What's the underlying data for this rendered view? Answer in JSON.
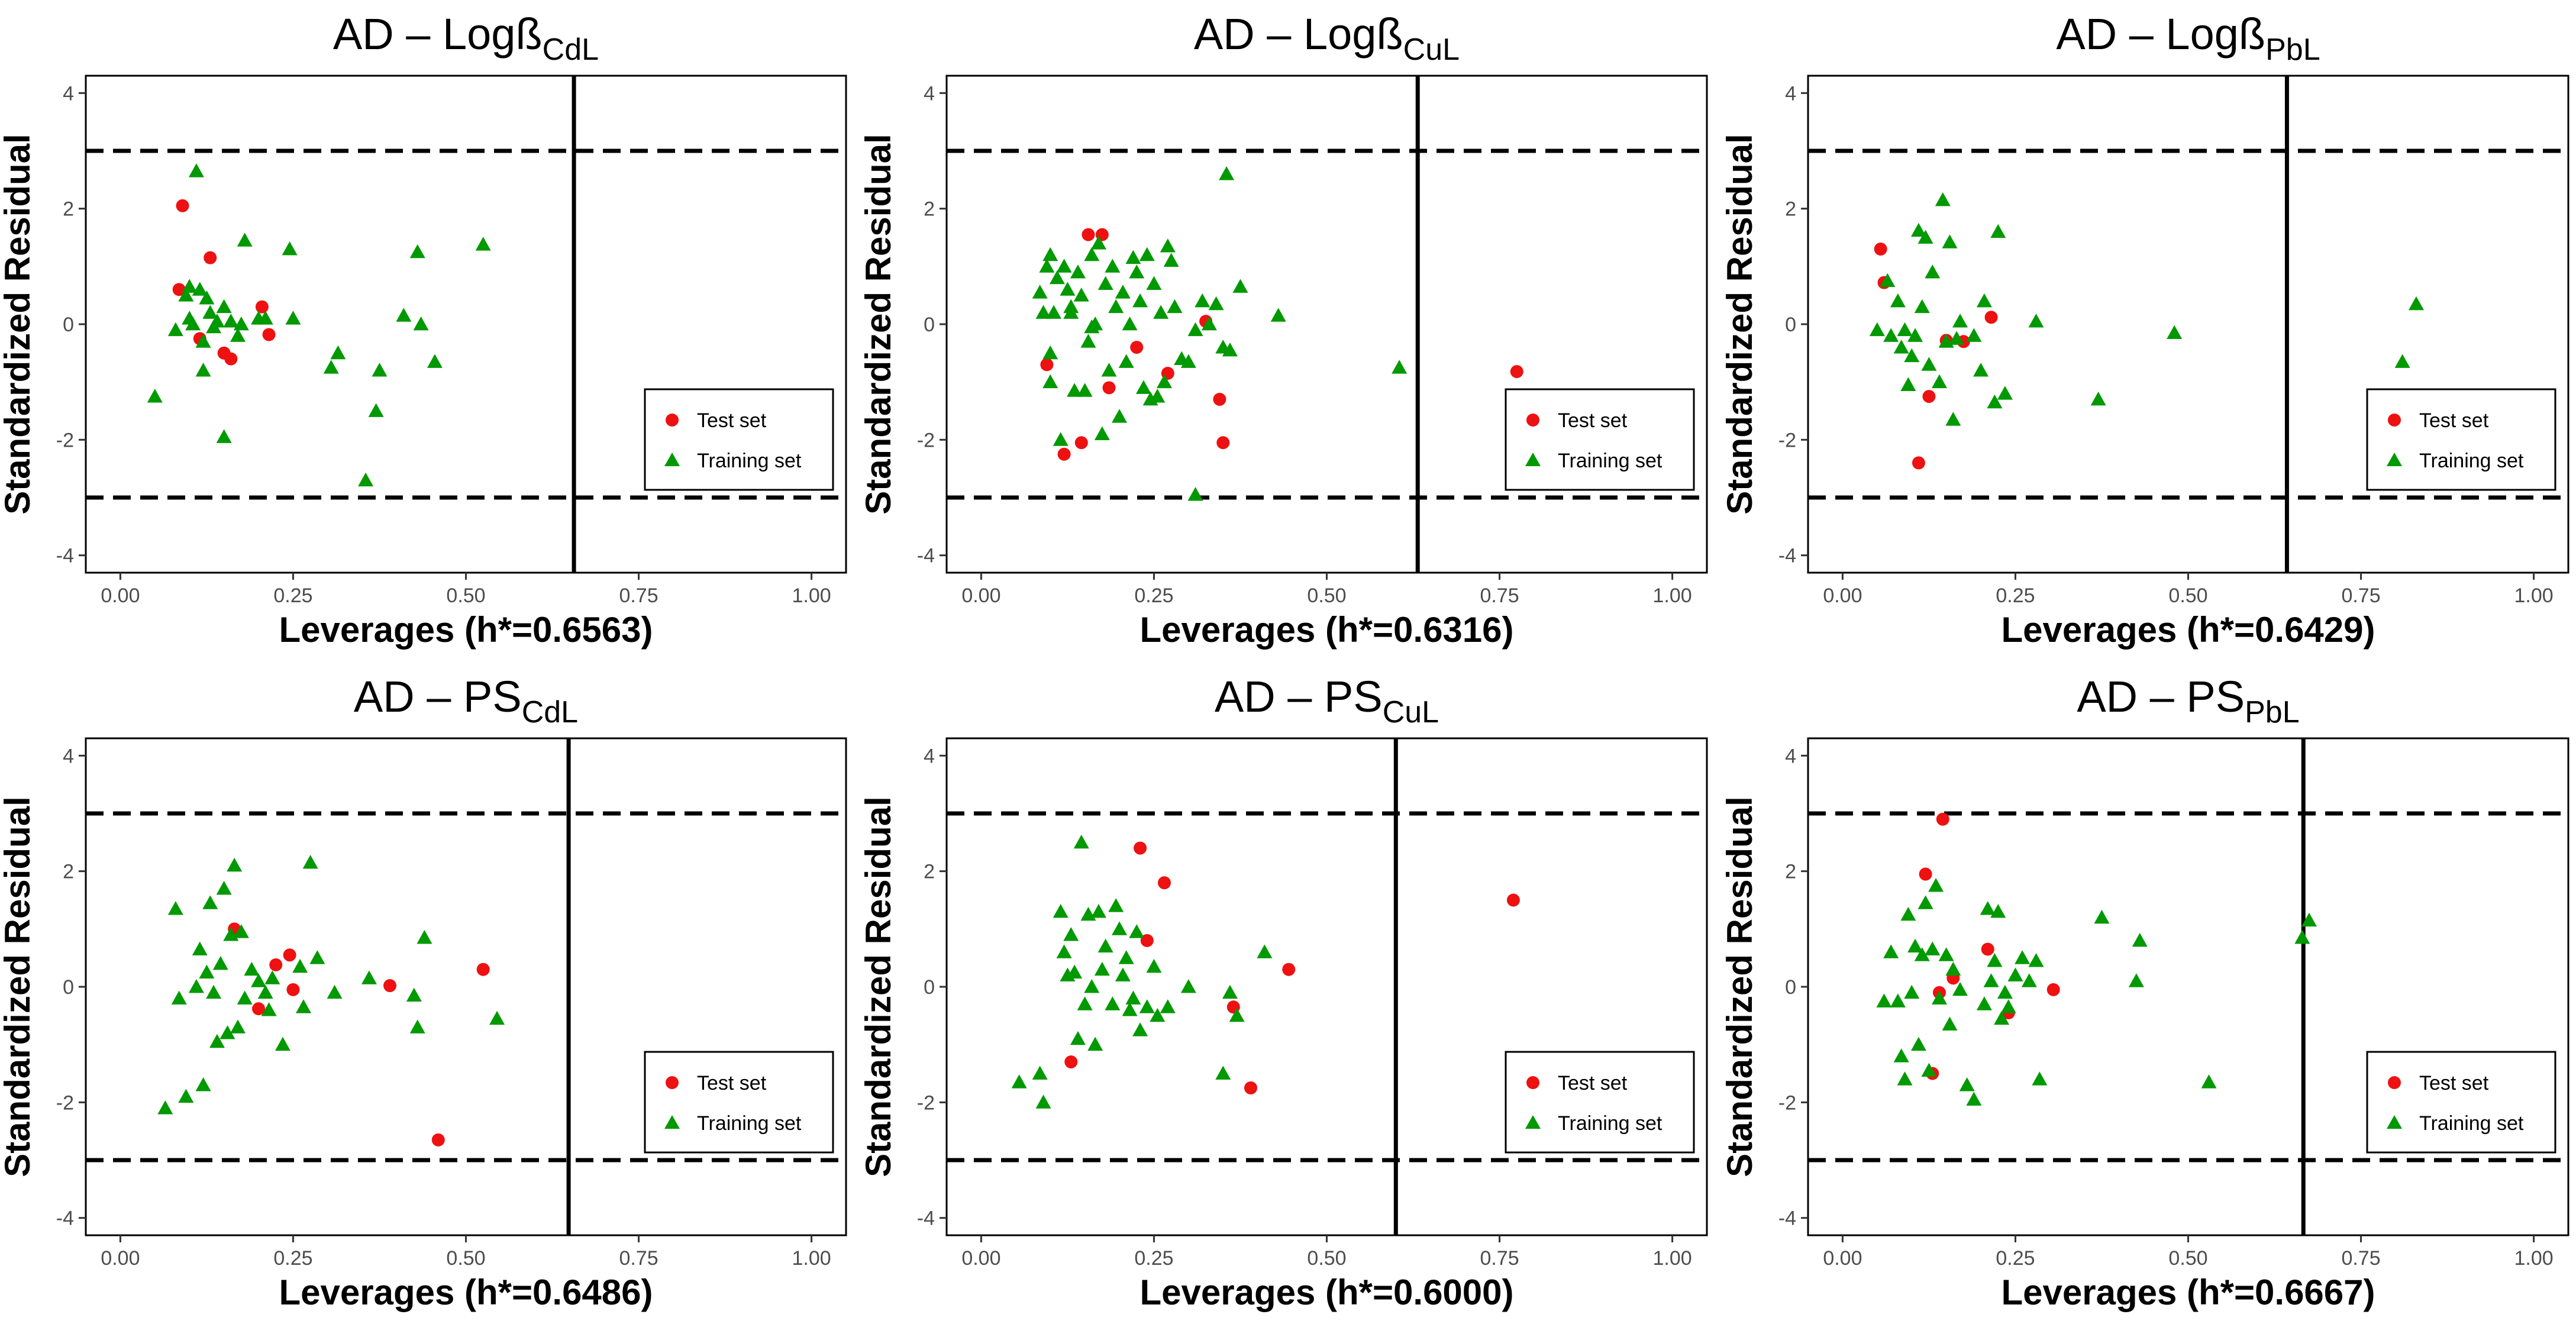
{
  "colors": {
    "test": "#ee1111",
    "training": "#009900",
    "frame": "#000000"
  },
  "chart_data": [
    {
      "type": "scatter",
      "title": "AD – Logß",
      "title_sub": "CdL",
      "xlabel": "Leverages (h*=0.6563)",
      "ylabel": "Standardized Residual",
      "xlim": [
        -0.05,
        1.05
      ],
      "ylim": [
        -4.3,
        4.3
      ],
      "xticks": [
        "0.00",
        "0.25",
        "0.50",
        "0.75",
        "1.00"
      ],
      "yticks": [
        "-4",
        "-2",
        "0",
        "2",
        "4"
      ],
      "h_star": 0.6563,
      "residual_limits": [
        -3,
        3
      ],
      "legend": {
        "position": "bottom-right",
        "test_label": "Test set",
        "training_label": "Training set"
      },
      "series": [
        {
          "name": "Test set",
          "marker": "circle",
          "x": [
            0.09,
            0.085,
            0.13,
            0.115,
            0.15,
            0.16,
            0.205,
            0.215
          ],
          "y": [
            2.05,
            0.6,
            1.15,
            -0.25,
            -0.5,
            -0.6,
            0.3,
            -0.18
          ]
        },
        {
          "name": "Training set",
          "marker": "triangle",
          "x": [
            0.11,
            0.05,
            0.08,
            0.095,
            0.1,
            0.105,
            0.115,
            0.12,
            0.125,
            0.13,
            0.135,
            0.14,
            0.15,
            0.16,
            0.17,
            0.175,
            0.18,
            0.2,
            0.21,
            0.245,
            0.25,
            0.305,
            0.315,
            0.355,
            0.37,
            0.375,
            0.41,
            0.43,
            0.435,
            0.455,
            0.525,
            0.15,
            0.1,
            0.12
          ],
          "y": [
            2.65,
            -1.25,
            -0.1,
            0.5,
            0.65,
            0.0,
            0.6,
            -0.8,
            0.45,
            0.2,
            -0.05,
            0.05,
            0.3,
            0.05,
            -0.2,
            0.0,
            1.45,
            0.1,
            0.1,
            1.3,
            0.1,
            -0.75,
            -0.5,
            -2.7,
            -1.5,
            -0.8,
            0.15,
            1.25,
            0.0,
            -0.65,
            1.38,
            -1.95,
            0.1,
            -0.3
          ]
        }
      ]
    },
    {
      "type": "scatter",
      "title": "AD – Logß",
      "title_sub": "CuL",
      "xlabel": "Leverages (h*=0.6316)",
      "ylabel": "Standardized Residual",
      "xlim": [
        -0.05,
        1.05
      ],
      "ylim": [
        -4.3,
        4.3
      ],
      "xticks": [
        "0.00",
        "0.25",
        "0.50",
        "0.75",
        "1.00"
      ],
      "yticks": [
        "-4",
        "-2",
        "0",
        "2",
        "4"
      ],
      "h_star": 0.6316,
      "residual_limits": [
        -3,
        3
      ],
      "legend": {
        "position": "bottom-right",
        "test_label": "Test set",
        "training_label": "Training set"
      },
      "series": [
        {
          "name": "Test set",
          "marker": "circle",
          "x": [
            0.095,
            0.12,
            0.145,
            0.155,
            0.175,
            0.185,
            0.225,
            0.27,
            0.325,
            0.345,
            0.35,
            0.775
          ],
          "y": [
            -0.7,
            -2.25,
            -2.05,
            1.55,
            1.55,
            -1.1,
            -0.4,
            -0.85,
            0.05,
            -1.3,
            -2.05,
            -0.82
          ]
        },
        {
          "name": "Training set",
          "marker": "triangle",
          "x": [
            0.085,
            0.09,
            0.095,
            0.1,
            0.1,
            0.105,
            0.11,
            0.115,
            0.12,
            0.125,
            0.13,
            0.135,
            0.14,
            0.145,
            0.15,
            0.155,
            0.16,
            0.165,
            0.17,
            0.175,
            0.18,
            0.185,
            0.19,
            0.195,
            0.2,
            0.205,
            0.21,
            0.215,
            0.22,
            0.225,
            0.23,
            0.235,
            0.24,
            0.245,
            0.25,
            0.255,
            0.26,
            0.265,
            0.27,
            0.275,
            0.28,
            0.29,
            0.3,
            0.31,
            0.32,
            0.33,
            0.34,
            0.35,
            0.355,
            0.36,
            0.375,
            0.43,
            0.605,
            0.31,
            0.1,
            0.13,
            0.16
          ],
          "y": [
            0.55,
            0.2,
            1.0,
            1.2,
            -1.0,
            0.2,
            0.8,
            -2.0,
            1.0,
            0.6,
            0.2,
            -1.15,
            0.9,
            0.5,
            -1.15,
            -0.3,
            1.2,
            0.0,
            1.4,
            -1.9,
            0.7,
            -0.8,
            1.0,
            0.3,
            -1.6,
            0.55,
            -0.65,
            0.0,
            1.15,
            0.9,
            0.4,
            -1.1,
            1.2,
            -1.3,
            0.7,
            -1.25,
            0.2,
            -1.0,
            1.35,
            1.1,
            0.3,
            -0.6,
            -0.65,
            -2.95,
            0.4,
            0.0,
            0.35,
            -0.4,
            2.6,
            -0.45,
            0.65,
            0.15,
            -0.75,
            -0.1,
            -0.5,
            0.3,
            -0.05
          ]
        }
      ]
    },
    {
      "type": "scatter",
      "title": "AD – Logß",
      "title_sub": "PbL",
      "xlabel": "Leverages (h*=0.6429)",
      "ylabel": "Standardized Residual",
      "xlim": [
        -0.05,
        1.05
      ],
      "ylim": [
        -4.3,
        4.3
      ],
      "xticks": [
        "0.00",
        "0.25",
        "0.50",
        "0.75",
        "1.00"
      ],
      "yticks": [
        "-4",
        "-2",
        "0",
        "2",
        "4"
      ],
      "h_star": 0.6429,
      "residual_limits": [
        -3,
        3
      ],
      "legend": {
        "position": "bottom-right",
        "test_label": "Test set",
        "training_label": "Training set"
      },
      "series": [
        {
          "name": "Test set",
          "marker": "circle",
          "x": [
            0.055,
            0.06,
            0.11,
            0.125,
            0.15,
            0.175,
            0.215
          ],
          "y": [
            1.3,
            0.72,
            -2.4,
            -1.25,
            -0.28,
            -0.3,
            0.12
          ]
        },
        {
          "name": "Training set",
          "marker": "triangle",
          "x": [
            0.05,
            0.065,
            0.07,
            0.08,
            0.085,
            0.09,
            0.095,
            0.1,
            0.105,
            0.11,
            0.115,
            0.12,
            0.125,
            0.13,
            0.14,
            0.145,
            0.15,
            0.155,
            0.16,
            0.165,
            0.17,
            0.19,
            0.2,
            0.205,
            0.22,
            0.225,
            0.235,
            0.28,
            0.37,
            0.48,
            0.81,
            0.83
          ],
          "y": [
            -0.1,
            0.75,
            -0.2,
            0.4,
            -0.4,
            -0.1,
            -1.05,
            -0.55,
            -0.2,
            1.62,
            0.3,
            1.5,
            -0.7,
            0.9,
            -1.0,
            2.15,
            -0.3,
            1.42,
            -1.65,
            -0.25,
            0.05,
            -0.2,
            -0.8,
            0.4,
            -1.35,
            1.6,
            -1.2,
            0.05,
            -1.3,
            -0.15,
            -0.65,
            0.35
          ]
        }
      ]
    },
    {
      "type": "scatter",
      "title": "AD – PS",
      "title_sub": "CdL",
      "xlabel": "Leverages (h*=0.6486)",
      "ylabel": "Standardized Residual",
      "xlim": [
        -0.05,
        1.05
      ],
      "ylim": [
        -4.3,
        4.3
      ],
      "xticks": [
        "0.00",
        "0.25",
        "0.50",
        "0.75",
        "1.00"
      ],
      "yticks": [
        "-4",
        "-2",
        "0",
        "2",
        "4"
      ],
      "h_star": 0.6486,
      "residual_limits": [
        -3,
        3
      ],
      "legend": {
        "position": "bottom-right",
        "test_label": "Test set",
        "training_label": "Training set"
      },
      "series": [
        {
          "name": "Test set",
          "marker": "circle",
          "x": [
            0.165,
            0.2,
            0.225,
            0.245,
            0.25,
            0.39,
            0.46,
            0.525
          ],
          "y": [
            1.0,
            -0.38,
            0.38,
            0.55,
            -0.05,
            0.02,
            -2.65,
            0.3
          ]
        },
        {
          "name": "Training set",
          "marker": "triangle",
          "x": [
            0.065,
            0.08,
            0.085,
            0.095,
            0.11,
            0.115,
            0.12,
            0.125,
            0.13,
            0.135,
            0.14,
            0.145,
            0.15,
            0.155,
            0.16,
            0.165,
            0.17,
            0.175,
            0.18,
            0.19,
            0.2,
            0.21,
            0.215,
            0.22,
            0.235,
            0.26,
            0.265,
            0.275,
            0.285,
            0.31,
            0.36,
            0.425,
            0.43,
            0.44,
            0.545
          ],
          "y": [
            -2.1,
            1.35,
            -0.2,
            -1.9,
            0.0,
            0.65,
            -1.7,
            0.25,
            1.45,
            -0.1,
            -0.95,
            0.4,
            1.7,
            -0.8,
            0.9,
            2.1,
            -0.7,
            0.95,
            -0.2,
            0.3,
            0.1,
            -0.1,
            -0.4,
            0.15,
            -1.0,
            0.35,
            -0.35,
            2.15,
            0.5,
            -0.1,
            0.15,
            -0.15,
            -0.7,
            0.85,
            -0.55
          ]
        }
      ]
    },
    {
      "type": "scatter",
      "title": "AD – PS",
      "title_sub": "CuL",
      "xlabel": "Leverages (h*=0.6000)",
      "ylabel": "Standardized Residual",
      "xlim": [
        -0.05,
        1.05
      ],
      "ylim": [
        -4.3,
        4.3
      ],
      "xticks": [
        "0.00",
        "0.25",
        "0.50",
        "0.75",
        "1.00"
      ],
      "yticks": [
        "-4",
        "-2",
        "0",
        "2",
        "4"
      ],
      "h_star": 0.6,
      "residual_limits": [
        -3,
        3
      ],
      "legend": {
        "position": "bottom-right",
        "test_label": "Test set",
        "training_label": "Training set"
      },
      "series": [
        {
          "name": "Test set",
          "marker": "circle",
          "x": [
            0.13,
            0.23,
            0.24,
            0.265,
            0.365,
            0.39,
            0.445,
            0.77
          ],
          "y": [
            -1.3,
            2.4,
            0.8,
            1.8,
            -0.35,
            -1.75,
            0.3,
            1.5
          ]
        },
        {
          "name": "Training set",
          "marker": "triangle",
          "x": [
            0.055,
            0.085,
            0.09,
            0.115,
            0.12,
            0.125,
            0.13,
            0.135,
            0.14,
            0.145,
            0.15,
            0.155,
            0.16,
            0.165,
            0.17,
            0.175,
            0.18,
            0.19,
            0.195,
            0.2,
            0.205,
            0.21,
            0.215,
            0.22,
            0.225,
            0.23,
            0.24,
            0.25,
            0.255,
            0.27,
            0.3,
            0.35,
            0.36,
            0.37,
            0.41
          ],
          "y": [
            -1.65,
            -1.5,
            -2.0,
            1.3,
            0.6,
            0.2,
            0.9,
            0.25,
            -0.9,
            2.5,
            -0.3,
            1.25,
            0.0,
            -1.0,
            1.3,
            0.3,
            0.7,
            -0.3,
            1.4,
            1.0,
            0.2,
            0.5,
            -0.4,
            -0.2,
            0.95,
            -0.75,
            -0.35,
            0.35,
            -0.5,
            -0.35,
            0.0,
            -1.5,
            -0.1,
            -0.5,
            0.6
          ]
        }
      ]
    },
    {
      "type": "scatter",
      "title": "AD – PS",
      "title_sub": "PbL",
      "xlabel": "Leverages (h*=0.6667)",
      "ylabel": "Standardized Residual",
      "xlim": [
        -0.05,
        1.05
      ],
      "ylim": [
        -4.3,
        4.3
      ],
      "xticks": [
        "0.00",
        "0.25",
        "0.50",
        "0.75",
        "1.00"
      ],
      "yticks": [
        "-4",
        "-2",
        "0",
        "2",
        "4"
      ],
      "h_star": 0.6667,
      "residual_limits": [
        -3,
        3
      ],
      "legend": {
        "position": "bottom-right",
        "test_label": "Test set",
        "training_label": "Training set"
      },
      "series": [
        {
          "name": "Test set",
          "marker": "circle",
          "x": [
            0.12,
            0.13,
            0.14,
            0.145,
            0.16,
            0.21,
            0.24,
            0.305
          ],
          "y": [
            1.95,
            -1.5,
            -0.1,
            2.9,
            0.15,
            0.65,
            -0.45,
            -0.05
          ]
        },
        {
          "name": "Training set",
          "marker": "triangle",
          "x": [
            0.06,
            0.07,
            0.08,
            0.085,
            0.09,
            0.095,
            0.1,
            0.105,
            0.11,
            0.115,
            0.12,
            0.125,
            0.13,
            0.135,
            0.14,
            0.15,
            0.155,
            0.16,
            0.17,
            0.18,
            0.19,
            0.205,
            0.21,
            0.215,
            0.22,
            0.225,
            0.23,
            0.235,
            0.24,
            0.25,
            0.26,
            0.27,
            0.28,
            0.285,
            0.375,
            0.425,
            0.43,
            0.53,
            0.665,
            0.675
          ],
          "y": [
            -0.25,
            0.6,
            -0.25,
            -1.2,
            -1.6,
            1.25,
            -0.1,
            0.7,
            -1.0,
            0.55,
            1.45,
            -1.45,
            0.65,
            1.75,
            -0.2,
            0.55,
            -0.65,
            0.3,
            -0.05,
            -1.7,
            -1.95,
            -0.3,
            1.35,
            0.1,
            0.45,
            1.3,
            -0.55,
            -0.1,
            -0.35,
            0.2,
            0.5,
            0.1,
            0.45,
            -1.6,
            1.2,
            0.1,
            0.8,
            -1.65,
            0.85,
            1.15
          ]
        }
      ]
    }
  ]
}
